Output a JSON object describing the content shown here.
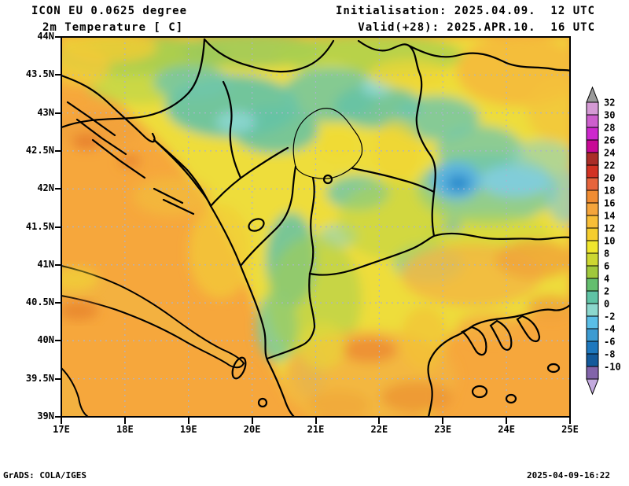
{
  "header": {
    "model": "ICON EU 0.0625 degree",
    "field": "2m Temperature [ C]",
    "init": "Initialisation: 2025.04.09.  12 UTC",
    "valid": "Valid(+28): 2025.APR.10.  16 UTC"
  },
  "footer": {
    "grads": "GrADS: COLA/IGES",
    "timestamp": "2025-04-09-16:22"
  },
  "map": {
    "lat_range": [
      39,
      44
    ],
    "lon_range": [
      17,
      25
    ],
    "lat_ticks": [
      {
        "label": "44N",
        "value": 44.0
      },
      {
        "label": "43.5N",
        "value": 43.5
      },
      {
        "label": "43N",
        "value": 43.0
      },
      {
        "label": "42.5N",
        "value": 42.5
      },
      {
        "label": "42N",
        "value": 42.0
      },
      {
        "label": "41.5N",
        "value": 41.5
      },
      {
        "label": "41N",
        "value": 41.0
      },
      {
        "label": "40.5N",
        "value": 40.5
      },
      {
        "label": "40N",
        "value": 40.0
      },
      {
        "label": "39.5N",
        "value": 39.5
      },
      {
        "label": "39N",
        "value": 39.0
      }
    ],
    "lon_ticks": [
      {
        "label": "17E",
        "value": 17
      },
      {
        "label": "18E",
        "value": 18
      },
      {
        "label": "19E",
        "value": 19
      },
      {
        "label": "20E",
        "value": 20
      },
      {
        "label": "21E",
        "value": 21
      },
      {
        "label": "22E",
        "value": 22
      },
      {
        "label": "23E",
        "value": 23
      },
      {
        "label": "24E",
        "value": 24
      },
      {
        "label": "25E",
        "value": 25
      }
    ]
  },
  "colorbar": {
    "unit": "C",
    "labels": [
      "32",
      "30",
      "28",
      "26",
      "24",
      "22",
      "20",
      "18",
      "16",
      "14",
      "12",
      "10",
      "8",
      "6",
      "4",
      "2",
      "0",
      "-2",
      "-4",
      "-6",
      "-8",
      "-10"
    ],
    "over_color": "#9a9a9a",
    "under_color": "#c3aade",
    "segments": [
      {
        "range": "30..32",
        "color": "#d59ad5"
      },
      {
        "range": "28..30",
        "color": "#cd5fcd"
      },
      {
        "range": "26..28",
        "color": "#cd28cd"
      },
      {
        "range": "24..26",
        "color": "#c80a96"
      },
      {
        "range": "22..24",
        "color": "#aa2d28"
      },
      {
        "range": "20..22",
        "color": "#d23223"
      },
      {
        "range": "18..20",
        "color": "#e6643c"
      },
      {
        "range": "16..18",
        "color": "#f08c32"
      },
      {
        "range": "14..16",
        "color": "#f5a53c"
      },
      {
        "range": "12..14",
        "color": "#f8be37"
      },
      {
        "range": "10..12",
        "color": "#f5cd2d"
      },
      {
        "range": "8..10",
        "color": "#f0e62d"
      },
      {
        "range": "6..8",
        "color": "#cdd732"
      },
      {
        "range": "4..6",
        "color": "#a0c83c"
      },
      {
        "range": "2..4",
        "color": "#64be6e"
      },
      {
        "range": "0..2",
        "color": "#5fc3a5"
      },
      {
        "range": "-2..0",
        "color": "#8cd7cd"
      },
      {
        "range": "-4..-2",
        "color": "#5abee6"
      },
      {
        "range": "-6..-4",
        "color": "#3c9bd2"
      },
      {
        "range": "-8..-6",
        "color": "#1e78be"
      },
      {
        "range": "-10..-8",
        "color": "#145a9b"
      },
      {
        "range": "<-10",
        "color": "#8264aa"
      }
    ]
  }
}
